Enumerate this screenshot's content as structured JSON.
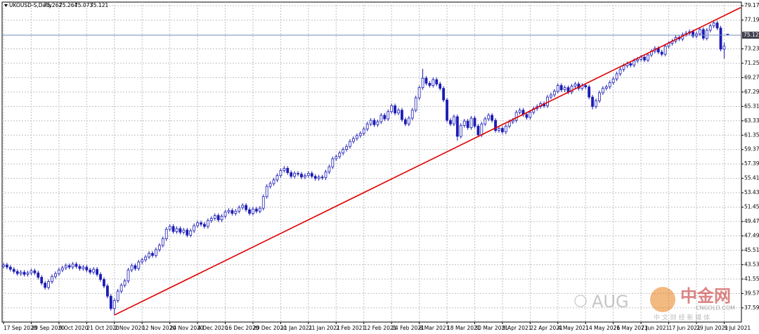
{
  "chart_data": {
    "type": "candlestick",
    "title": "UKOUSD-S,Daily",
    "color": "#1c1cb4",
    "up_fill": "#ffffff",
    "grid": true,
    "ylim": [
      35.64,
      79.67
    ],
    "yticks": [
      79.175,
      77.195,
      73.235,
      71.255,
      69.275,
      67.295,
      65.315,
      63.335,
      61.355,
      59.375,
      57.395,
      55.415,
      53.435,
      51.455,
      49.475,
      47.495,
      45.515,
      43.535,
      41.555,
      39.575,
      37.595
    ],
    "current_price_color": "#7088c0",
    "trendline": {
      "color": "#e00000",
      "from": {
        "x": "2 Nov 2020",
        "y": 36.6
      },
      "to": {
        "x": "9 Jul 2021",
        "y": 77.8
      }
    },
    "watermark": {
      "brand": "AUG",
      "logo": "中金网",
      "site": "CNGOLD.COM",
      "slogan": "中 文 财 经 新 媒 体"
    },
    "categories": [
      "17 Sep 2020",
      null,
      null,
      null,
      null,
      null,
      null,
      null,
      "29 Sep 2020",
      null,
      null,
      null,
      null,
      null,
      null,
      null,
      "9 Oct 2020",
      null,
      null,
      null,
      null,
      null,
      null,
      null,
      "21 Oct 2020",
      null,
      null,
      null,
      null,
      null,
      null,
      null,
      "2 Nov 2020",
      null,
      null,
      null,
      null,
      null,
      null,
      null,
      "12 Nov 2020",
      null,
      null,
      null,
      null,
      null,
      null,
      null,
      "24 Nov 2020",
      null,
      null,
      null,
      null,
      null,
      null,
      null,
      "4 Dec 2020",
      null,
      null,
      null,
      null,
      null,
      null,
      null,
      "16 Dec 2020",
      null,
      null,
      null,
      null,
      null,
      null,
      null,
      "29 Dec 2020",
      null,
      null,
      null,
      null,
      null,
      null,
      null,
      "11 Jan 2021",
      null,
      null,
      null,
      null,
      null,
      null,
      null,
      "21 Jan 2021",
      null,
      null,
      null,
      null,
      null,
      null,
      null,
      "2 Feb 2021",
      null,
      null,
      null,
      null,
      null,
      null,
      null,
      "12 Feb 2021",
      null,
      null,
      null,
      null,
      null,
      null,
      null,
      "24 Feb 2021",
      null,
      null,
      null,
      null,
      null,
      null,
      null,
      "8 Mar 2021",
      null,
      null,
      null,
      null,
      null,
      null,
      null,
      "18 Mar 2021",
      null,
      null,
      null,
      null,
      null,
      null,
      null,
      "30 Mar 2021",
      null,
      null,
      null,
      null,
      null,
      null,
      null,
      "9 Apr 2021",
      null,
      null,
      null,
      null,
      null,
      null,
      null,
      "22 Apr 2021",
      null,
      null,
      null,
      null,
      null,
      null,
      null,
      "4 May 2021",
      null,
      null,
      null,
      null,
      null,
      null,
      null,
      "14 May 2021",
      null,
      null,
      null,
      null,
      null,
      null,
      null,
      "26 May 2021",
      null,
      null,
      null,
      null,
      null,
      null,
      null,
      "7 Jun 2021",
      null,
      null,
      null,
      null,
      null,
      null,
      null,
      "17 Jun 2021",
      null,
      null,
      null,
      null,
      null,
      null,
      null,
      "29 Jun 2021",
      null,
      null,
      null,
      null,
      null,
      null,
      null,
      "9 Jul 2021",
      null
    ],
    "ohlc": [
      [
        43.3,
        43.8,
        43.0,
        43.5
      ],
      [
        43.5,
        43.8,
        42.9,
        43.2
      ],
      [
        43.2,
        43.5,
        42.6,
        42.9
      ],
      [
        42.9,
        43.2,
        42.3,
        42.6
      ],
      [
        42.6,
        42.9,
        42.0,
        42.3
      ],
      [
        42.3,
        42.8,
        42.0,
        42.5
      ],
      [
        42.5,
        42.8,
        41.9,
        42.2
      ],
      [
        42.2,
        42.7,
        41.9,
        42.4
      ],
      [
        42.4,
        43.0,
        42.1,
        42.7
      ],
      [
        42.7,
        43.0,
        42.1,
        42.4
      ],
      [
        42.4,
        42.7,
        41.5,
        41.8
      ],
      [
        41.8,
        42.1,
        40.7,
        41.0
      ],
      [
        41.0,
        41.3,
        40.1,
        40.4
      ],
      [
        40.4,
        41.5,
        40.1,
        41.2
      ],
      [
        41.2,
        42.2,
        40.9,
        41.9
      ],
      [
        41.9,
        42.6,
        41.6,
        42.3
      ],
      [
        42.3,
        43.1,
        42.0,
        42.8
      ],
      [
        42.8,
        43.4,
        42.5,
        43.1
      ],
      [
        43.1,
        43.7,
        42.8,
        43.4
      ],
      [
        43.4,
        43.7,
        42.9,
        43.2
      ],
      [
        43.2,
        43.9,
        42.9,
        43.6
      ],
      [
        43.6,
        43.9,
        43.0,
        43.3
      ],
      [
        43.3,
        43.6,
        42.7,
        43.0
      ],
      [
        43.0,
        43.5,
        42.7,
        43.2
      ],
      [
        43.2,
        43.5,
        42.5,
        42.8
      ],
      [
        42.8,
        43.1,
        42.2,
        42.5
      ],
      [
        42.5,
        43.2,
        42.2,
        42.9
      ],
      [
        42.9,
        43.2,
        41.9,
        42.2
      ],
      [
        42.2,
        42.5,
        41.2,
        41.5
      ],
      [
        41.5,
        41.8,
        40.3,
        40.6
      ],
      [
        40.6,
        40.9,
        38.9,
        39.2
      ],
      [
        39.2,
        39.5,
        37.2,
        37.5
      ],
      [
        37.5,
        38.9,
        36.6,
        38.6
      ],
      [
        38.6,
        40.2,
        38.3,
        39.9
      ],
      [
        39.9,
        41.0,
        39.6,
        40.7
      ],
      [
        40.7,
        41.6,
        40.4,
        41.3
      ],
      [
        41.3,
        43.1,
        41.0,
        42.8
      ],
      [
        42.8,
        43.7,
        42.5,
        43.4
      ],
      [
        43.4,
        43.7,
        42.7,
        43.0
      ],
      [
        43.0,
        44.2,
        42.7,
        43.9
      ],
      [
        43.9,
        44.5,
        43.6,
        44.2
      ],
      [
        44.2,
        44.9,
        43.9,
        44.6
      ],
      [
        44.6,
        45.4,
        44.3,
        45.1
      ],
      [
        45.1,
        45.4,
        44.5,
        44.8
      ],
      [
        44.8,
        45.9,
        44.5,
        45.6
      ],
      [
        45.6,
        46.5,
        45.3,
        46.2
      ],
      [
        46.2,
        47.4,
        45.9,
        47.1
      ],
      [
        47.1,
        48.7,
        46.8,
        48.4
      ],
      [
        48.4,
        49.1,
        48.1,
        48.8
      ],
      [
        48.8,
        49.1,
        47.8,
        48.1
      ],
      [
        48.1,
        48.8,
        47.8,
        48.5
      ],
      [
        48.5,
        48.8,
        47.7,
        48.0
      ],
      [
        48.0,
        48.6,
        47.7,
        48.3
      ],
      [
        48.3,
        48.6,
        47.3,
        47.6
      ],
      [
        47.6,
        48.5,
        47.3,
        48.2
      ],
      [
        48.2,
        49.2,
        47.9,
        48.9
      ],
      [
        48.9,
        49.6,
        48.6,
        49.3
      ],
      [
        49.3,
        49.6,
        48.8,
        49.1
      ],
      [
        49.1,
        49.4,
        48.5,
        48.8
      ],
      [
        48.8,
        49.9,
        48.5,
        49.6
      ],
      [
        49.6,
        50.2,
        49.3,
        49.9
      ],
      [
        49.9,
        50.6,
        49.6,
        50.3
      ],
      [
        50.3,
        50.6,
        49.4,
        49.7
      ],
      [
        49.7,
        50.5,
        49.4,
        50.2
      ],
      [
        50.2,
        51.1,
        49.9,
        50.8
      ],
      [
        50.8,
        51.3,
        50.5,
        51.0
      ],
      [
        51.0,
        51.3,
        50.3,
        50.6
      ],
      [
        50.6,
        51.2,
        50.3,
        50.9
      ],
      [
        50.9,
        51.7,
        50.6,
        51.4
      ],
      [
        51.4,
        52.0,
        51.1,
        51.7
      ],
      [
        51.7,
        52.0,
        50.8,
        51.1
      ],
      [
        51.1,
        51.4,
        50.3,
        50.6
      ],
      [
        50.6,
        51.5,
        50.3,
        51.2
      ],
      [
        51.2,
        51.5,
        50.6,
        50.9
      ],
      [
        50.9,
        51.6,
        50.6,
        51.3
      ],
      [
        51.3,
        53.2,
        51.0,
        52.9
      ],
      [
        52.9,
        54.6,
        52.6,
        54.3
      ],
      [
        54.3,
        55.0,
        54.0,
        54.7
      ],
      [
        54.7,
        55.5,
        54.4,
        55.2
      ],
      [
        55.2,
        56.1,
        54.9,
        55.8
      ],
      [
        55.8,
        56.8,
        55.5,
        56.5
      ],
      [
        56.5,
        57.1,
        56.2,
        56.8
      ],
      [
        56.8,
        57.1,
        55.9,
        56.2
      ],
      [
        56.2,
        56.5,
        55.4,
        55.7
      ],
      [
        55.7,
        56.4,
        55.4,
        56.1
      ],
      [
        56.1,
        56.4,
        55.7,
        56.0
      ],
      [
        56.0,
        56.3,
        55.3,
        55.6
      ],
      [
        55.6,
        56.1,
        55.3,
        55.8
      ],
      [
        55.8,
        56.4,
        55.5,
        56.1
      ],
      [
        56.1,
        56.4,
        55.4,
        55.7
      ],
      [
        55.7,
        56.0,
        55.1,
        55.4
      ],
      [
        55.4,
        55.9,
        55.1,
        55.6
      ],
      [
        55.6,
        55.9,
        55.2,
        55.5
      ],
      [
        55.5,
        56.6,
        55.2,
        56.3
      ],
      [
        56.3,
        57.3,
        56.0,
        57.0
      ],
      [
        57.0,
        58.4,
        56.7,
        58.1
      ],
      [
        58.1,
        58.7,
        57.8,
        58.4
      ],
      [
        58.4,
        59.2,
        58.1,
        58.9
      ],
      [
        58.9,
        59.7,
        58.6,
        59.4
      ],
      [
        59.4,
        60.1,
        59.1,
        59.8
      ],
      [
        59.8,
        60.8,
        59.5,
        60.5
      ],
      [
        60.5,
        61.2,
        60.2,
        60.9
      ],
      [
        60.9,
        61.6,
        60.6,
        61.3
      ],
      [
        61.3,
        61.9,
        61.0,
        61.6
      ],
      [
        61.6,
        62.5,
        61.3,
        62.2
      ],
      [
        62.2,
        63.2,
        61.9,
        62.9
      ],
      [
        62.9,
        63.7,
        62.6,
        63.4
      ],
      [
        63.4,
        63.7,
        62.5,
        62.8
      ],
      [
        62.8,
        63.5,
        62.5,
        63.2
      ],
      [
        63.2,
        64.4,
        62.9,
        64.1
      ],
      [
        64.1,
        64.4,
        63.3,
        63.6
      ],
      [
        63.6,
        64.9,
        63.3,
        64.6
      ],
      [
        64.6,
        65.7,
        64.3,
        65.4
      ],
      [
        65.4,
        65.7,
        64.1,
        64.4
      ],
      [
        64.4,
        65.1,
        64.1,
        64.8
      ],
      [
        64.8,
        65.1,
        63.2,
        63.5
      ],
      [
        63.5,
        63.8,
        62.6,
        62.9
      ],
      [
        62.9,
        64.0,
        62.6,
        63.7
      ],
      [
        63.7,
        65.1,
        63.4,
        64.8
      ],
      [
        64.8,
        66.8,
        64.5,
        66.5
      ],
      [
        66.5,
        68.2,
        66.2,
        67.9
      ],
      [
        67.9,
        70.5,
        67.6,
        69.2
      ],
      [
        69.2,
        69.5,
        68.2,
        68.5
      ],
      [
        68.5,
        68.8,
        67.9,
        68.2
      ],
      [
        68.2,
        69.3,
        67.9,
        69.0
      ],
      [
        69.0,
        69.3,
        68.1,
        68.4
      ],
      [
        68.4,
        68.7,
        67.5,
        67.8
      ],
      [
        67.8,
        68.1,
        65.9,
        66.2
      ],
      [
        66.2,
        66.5,
        63.1,
        63.4
      ],
      [
        63.4,
        63.7,
        62.6,
        62.9
      ],
      [
        62.9,
        64.2,
        62.6,
        63.9
      ],
      [
        63.9,
        64.2,
        60.6,
        61.2
      ],
      [
        61.2,
        63.0,
        60.9,
        62.7
      ],
      [
        62.7,
        63.6,
        62.4,
        63.3
      ],
      [
        63.3,
        63.6,
        62.1,
        62.4
      ],
      [
        62.4,
        64.0,
        62.1,
        63.7
      ],
      [
        63.7,
        64.0,
        62.3,
        62.6
      ],
      [
        62.6,
        62.9,
        61.1,
        61.4
      ],
      [
        61.4,
        63.2,
        61.1,
        62.9
      ],
      [
        62.9,
        63.9,
        62.6,
        63.6
      ],
      [
        63.6,
        64.4,
        63.3,
        64.1
      ],
      [
        64.1,
        64.4,
        63.1,
        63.4
      ],
      [
        63.4,
        63.7,
        61.7,
        62.0
      ],
      [
        62.0,
        62.6,
        61.7,
        62.3
      ],
      [
        62.3,
        62.6,
        61.5,
        61.8
      ],
      [
        61.8,
        62.9,
        61.5,
        62.6
      ],
      [
        62.6,
        63.5,
        62.3,
        63.2
      ],
      [
        63.2,
        63.7,
        62.9,
        63.4
      ],
      [
        63.4,
        64.8,
        63.1,
        64.5
      ],
      [
        64.5,
        65.1,
        64.2,
        64.8
      ],
      [
        64.8,
        65.1,
        63.9,
        64.2
      ],
      [
        64.2,
        64.5,
        63.5,
        63.8
      ],
      [
        63.8,
        64.8,
        63.5,
        64.5
      ],
      [
        64.5,
        65.3,
        64.2,
        65.0
      ],
      [
        65.0,
        65.6,
        64.7,
        65.3
      ],
      [
        65.3,
        66.0,
        65.0,
        65.7
      ],
      [
        65.7,
        66.0,
        65.1,
        65.4
      ],
      [
        65.4,
        66.9,
        65.1,
        66.6
      ],
      [
        66.6,
        67.2,
        66.3,
        66.9
      ],
      [
        66.9,
        67.7,
        66.6,
        67.4
      ],
      [
        67.4,
        68.5,
        67.1,
        68.2
      ],
      [
        68.2,
        68.5,
        67.3,
        67.6
      ],
      [
        67.6,
        68.2,
        67.3,
        67.9
      ],
      [
        67.9,
        68.2,
        67.0,
        67.3
      ],
      [
        67.3,
        68.4,
        67.0,
        68.1
      ],
      [
        68.1,
        68.7,
        67.8,
        68.4
      ],
      [
        68.4,
        68.7,
        67.5,
        67.8
      ],
      [
        67.8,
        68.5,
        67.5,
        68.2
      ],
      [
        68.2,
        68.5,
        67.7,
        68.0
      ],
      [
        68.0,
        68.3,
        66.3,
        66.6
      ],
      [
        66.6,
        66.9,
        64.9,
        65.3
      ],
      [
        65.3,
        66.4,
        65.0,
        66.1
      ],
      [
        66.1,
        67.5,
        65.8,
        67.2
      ],
      [
        67.2,
        68.1,
        66.9,
        67.8
      ],
      [
        67.8,
        68.3,
        67.5,
        68.0
      ],
      [
        68.0,
        68.9,
        67.7,
        68.6
      ],
      [
        68.6,
        69.4,
        68.3,
        69.1
      ],
      [
        69.1,
        70.1,
        68.8,
        69.8
      ],
      [
        69.8,
        70.7,
        69.5,
        70.4
      ],
      [
        70.4,
        71.2,
        70.1,
        70.9
      ],
      [
        70.9,
        71.5,
        70.6,
        71.2
      ],
      [
        71.2,
        71.5,
        70.7,
        71.0
      ],
      [
        71.0,
        71.9,
        70.7,
        71.6
      ],
      [
        71.6,
        72.1,
        71.3,
        71.8
      ],
      [
        71.8,
        72.4,
        71.5,
        72.1
      ],
      [
        72.1,
        72.4,
        71.4,
        71.7
      ],
      [
        71.7,
        72.7,
        71.4,
        72.4
      ],
      [
        72.4,
        73.2,
        72.1,
        72.9
      ],
      [
        72.9,
        73.6,
        72.6,
        73.3
      ],
      [
        73.3,
        73.6,
        72.5,
        72.8
      ],
      [
        72.8,
        73.1,
        72.2,
        72.5
      ],
      [
        72.5,
        73.9,
        72.2,
        73.6
      ],
      [
        73.6,
        74.3,
        73.3,
        74.0
      ],
      [
        74.0,
        74.6,
        73.7,
        74.3
      ],
      [
        74.3,
        75.1,
        74.0,
        74.8
      ],
      [
        74.8,
        75.1,
        74.3,
        74.6
      ],
      [
        74.6,
        75.5,
        74.3,
        75.2
      ],
      [
        75.2,
        75.7,
        74.9,
        75.4
      ],
      [
        75.4,
        75.9,
        75.1,
        75.6
      ],
      [
        75.6,
        75.9,
        74.7,
        75.0
      ],
      [
        75.0,
        75.6,
        74.7,
        75.3
      ],
      [
        75.3,
        76.2,
        75.0,
        75.9
      ],
      [
        75.9,
        76.2,
        74.4,
        74.7
      ],
      [
        74.7,
        76.1,
        74.4,
        75.8
      ],
      [
        75.8,
        76.7,
        75.5,
        76.4
      ],
      [
        76.4,
        77.1,
        76.1,
        76.8
      ],
      [
        76.8,
        77.1,
        75.8,
        76.1
      ],
      [
        76.1,
        76.4,
        72.9,
        73.2
      ],
      [
        73.2,
        74.1,
        71.9,
        73.6
      ],
      [
        75.262,
        75.264,
        75.073,
        75.121
      ]
    ]
  }
}
